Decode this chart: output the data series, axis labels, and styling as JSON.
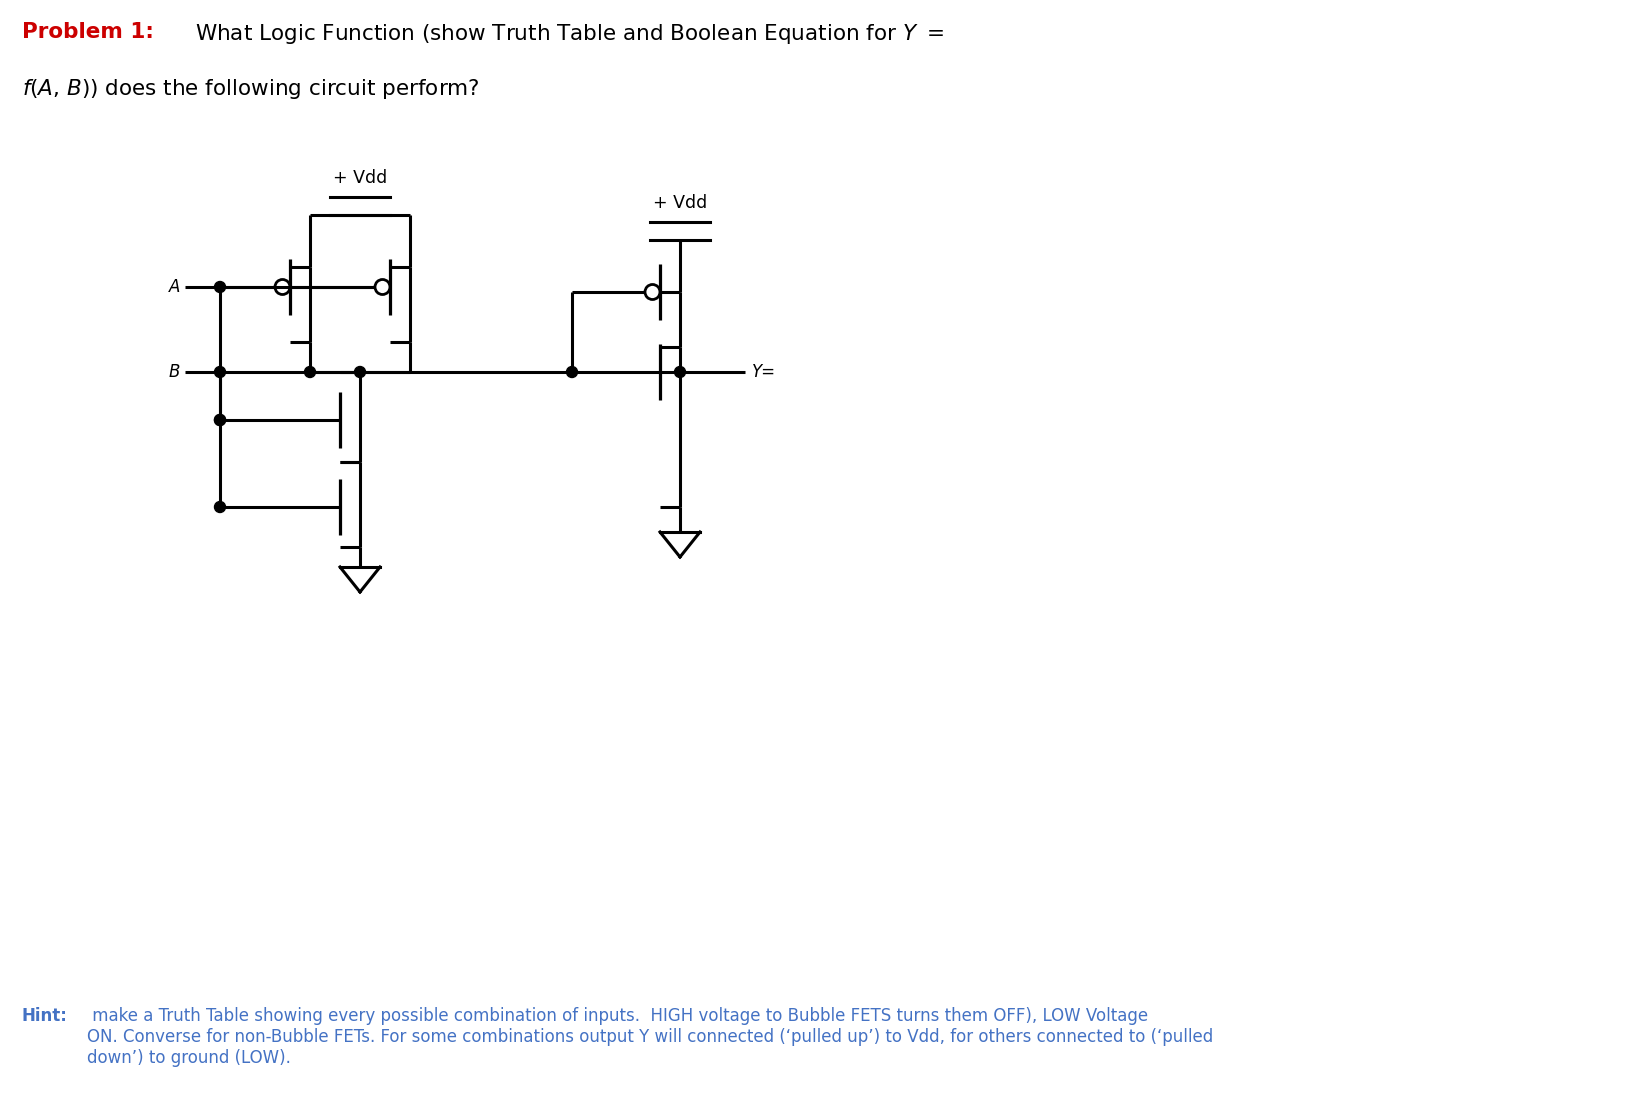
{
  "title_red": "#cc0000",
  "hint_color": "#4472c4",
  "bg_color": "#ffffff",
  "vdd_label": "+ Vdd",
  "A_label": "A",
  "B_label": "B",
  "Y_label": "Y="
}
